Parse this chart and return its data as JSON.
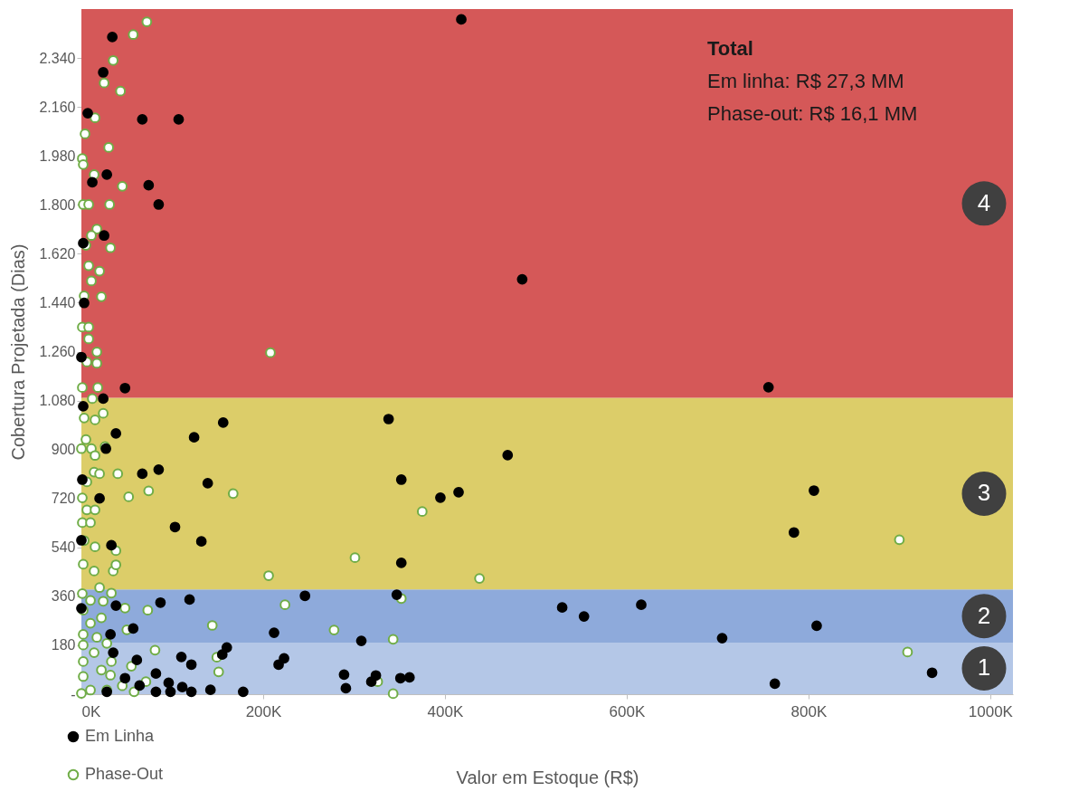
{
  "chart_data": {
    "type": "scatter",
    "xlabel": "Valor em Estoque (R$)",
    "ylabel": "Cobertura Projetada (Dias)",
    "xlim": [
      0,
      1025000
    ],
    "ylim": [
      0,
      2520
    ],
    "xticks": [
      {
        "value": 0,
        "label": "0K"
      },
      {
        "value": 200000,
        "label": "200K"
      },
      {
        "value": 400000,
        "label": "400K"
      },
      {
        "value": 600000,
        "label": "600K"
      },
      {
        "value": 800000,
        "label": "800K"
      },
      {
        "value": 1000000,
        "label": "1000K"
      }
    ],
    "yticks": [
      {
        "value": 0,
        "label": "-"
      },
      180,
      360,
      540,
      720,
      900,
      {
        "value": 1080,
        "label": "1.080"
      },
      {
        "value": 1260,
        "label": "1.260"
      },
      {
        "value": 1440,
        "label": "1.440"
      },
      {
        "value": 1620,
        "label": "1.620"
      },
      {
        "value": 1800,
        "label": "1.800"
      },
      {
        "value": 1980,
        "label": "1.980"
      },
      {
        "value": 2160,
        "label": "2.160"
      },
      {
        "value": 2340,
        "label": "2.340"
      }
    ],
    "marker": "circle",
    "legend": "bottom left",
    "bands": [
      {
        "axis": "y",
        "from": 0,
        "to": 190,
        "label": "1",
        "color": "#b4c7e7"
      },
      {
        "axis": "y",
        "from": 190,
        "to": 385,
        "label": "2",
        "color": "#8eaadb"
      },
      {
        "axis": "y",
        "from": 385,
        "to": 1090,
        "label": "3",
        "color": "#dccd69"
      },
      {
        "axis": "y",
        "from": 1090,
        "to": 2520,
        "label": "4",
        "color": "#d55858"
      }
    ],
    "annotations": [
      "Total",
      "Em linha: R$ 27,3 MM",
      "Phase-out: R$ 16,1 MM"
    ],
    "series": [
      {
        "name": "Em Linha",
        "color": "#000000",
        "x": [
          418000,
          485000,
          756000,
          156000,
          338000,
          469000,
          139000,
          352000,
          395000,
          415000,
          806000,
          784000,
          352000,
          132000,
          246000,
          347000,
          529000,
          553000,
          616000,
          809000,
          705000,
          212000,
          308000,
          160000,
          155000,
          223000,
          217000,
          289000,
          324000,
          319000,
          351000,
          361000,
          291000,
          178000,
          142000,
          763000,
          936000,
          34000,
          24000,
          7000,
          67000,
          107000,
          28000,
          12000,
          74000,
          85000,
          25000,
          2000,
          3000,
          0,
          48000,
          24000,
          2000,
          38000,
          124000,
          27000,
          67000,
          85000,
          1000,
          20000,
          103000,
          0,
          33000,
          87000,
          119000,
          38000,
          0,
          32000,
          57000,
          61000,
          82000,
          110000,
          121000,
          96000,
          111000,
          121000,
          35000,
          48000,
          64000,
          28000,
          82000,
          98000
        ],
        "values": [
          2482,
          1526,
          1129,
          999,
          1012,
          879,
          776,
          789,
          723,
          743,
          749,
          595,
          483,
          562,
          362,
          366,
          319,
          286,
          329,
          252,
          206,
          226,
          196,
          172,
          146,
          132,
          109,
          72,
          69,
          46,
          59,
          62,
          22,
          9,
          16,
          39,
          79,
          2417,
          2287,
          2137,
          2114,
          2114,
          1911,
          1883,
          1872,
          1801,
          1687,
          1659,
          1439,
          1240,
          1126,
          1087,
          1059,
          959,
          945,
          903,
          811,
          826,
          789,
          720,
          615,
          566,
          548,
          337,
          348,
          326,
          316,
          220,
          242,
          126,
          76,
          137,
          109,
          42,
          26,
          9,
          153,
          59,
          32,
          9,
          9,
          9
        ]
      },
      {
        "name": "Phase-Out",
        "color": "#70ad47",
        "x": [
          208000,
          167000,
          375000,
          900000,
          301000,
          206000,
          438000,
          224000,
          352000,
          144000,
          278000,
          343000,
          909000,
          149000,
          151000,
          326000,
          343000,
          72000,
          57000,
          35000,
          25000,
          43000,
          15000,
          4000,
          30000,
          1000,
          2000,
          14000,
          45000,
          2000,
          8000,
          31000,
          17000,
          11000,
          5000,
          32000,
          8000,
          20000,
          11000,
          3000,
          22000,
          1000,
          8000,
          8000,
          17000,
          6000,
          17000,
          1000,
          18000,
          12000,
          3000,
          15000,
          24000,
          5000,
          0,
          11000,
          26000,
          15000,
          14000,
          20000,
          40000,
          6000,
          74000,
          52000,
          1000,
          6000,
          15000,
          1000,
          10000,
          3000,
          15000,
          38000,
          2000,
          14000,
          35000,
          38000,
          20000,
          1000,
          33000,
          10000,
          24000,
          48000,
          73000,
          2000,
          10000,
          22000,
          50000,
          2000,
          17000,
          28000,
          2000,
          14000,
          81000,
          2000,
          33000,
          55000,
          22000,
          2000,
          32000,
          71000,
          45000,
          10000,
          0,
          58000,
          28000
        ],
        "values": [
          1256,
          738,
          672,
          568,
          502,
          436,
          426,
          329,
          352,
          253,
          236,
          202,
          155,
          136,
          82,
          46,
          2,
          2473,
          2426,
          2331,
          2248,
          2218,
          2120,
          2061,
          2011,
          1970,
          1948,
          1911,
          1868,
          1801,
          1801,
          1801,
          1711,
          1687,
          1651,
          1642,
          1576,
          1556,
          1520,
          1465,
          1462,
          1350,
          1350,
          1307,
          1259,
          1222,
          1217,
          1128,
          1128,
          1087,
          1016,
          1009,
          1033,
          937,
          903,
          903,
          911,
          878,
          817,
          811,
          811,
          781,
          748,
          726,
          722,
          678,
          678,
          631,
          631,
          565,
          542,
          528,
          478,
          453,
          453,
          476,
          392,
          370,
          372,
          345,
          342,
          317,
          309,
          309,
          261,
          281,
          237,
          220,
          209,
          187,
          181,
          153,
          162,
          120,
          120,
          103,
          89,
          65,
          70,
          46,
          31,
          15,
          3,
          9,
          15
        ]
      }
    ]
  }
}
